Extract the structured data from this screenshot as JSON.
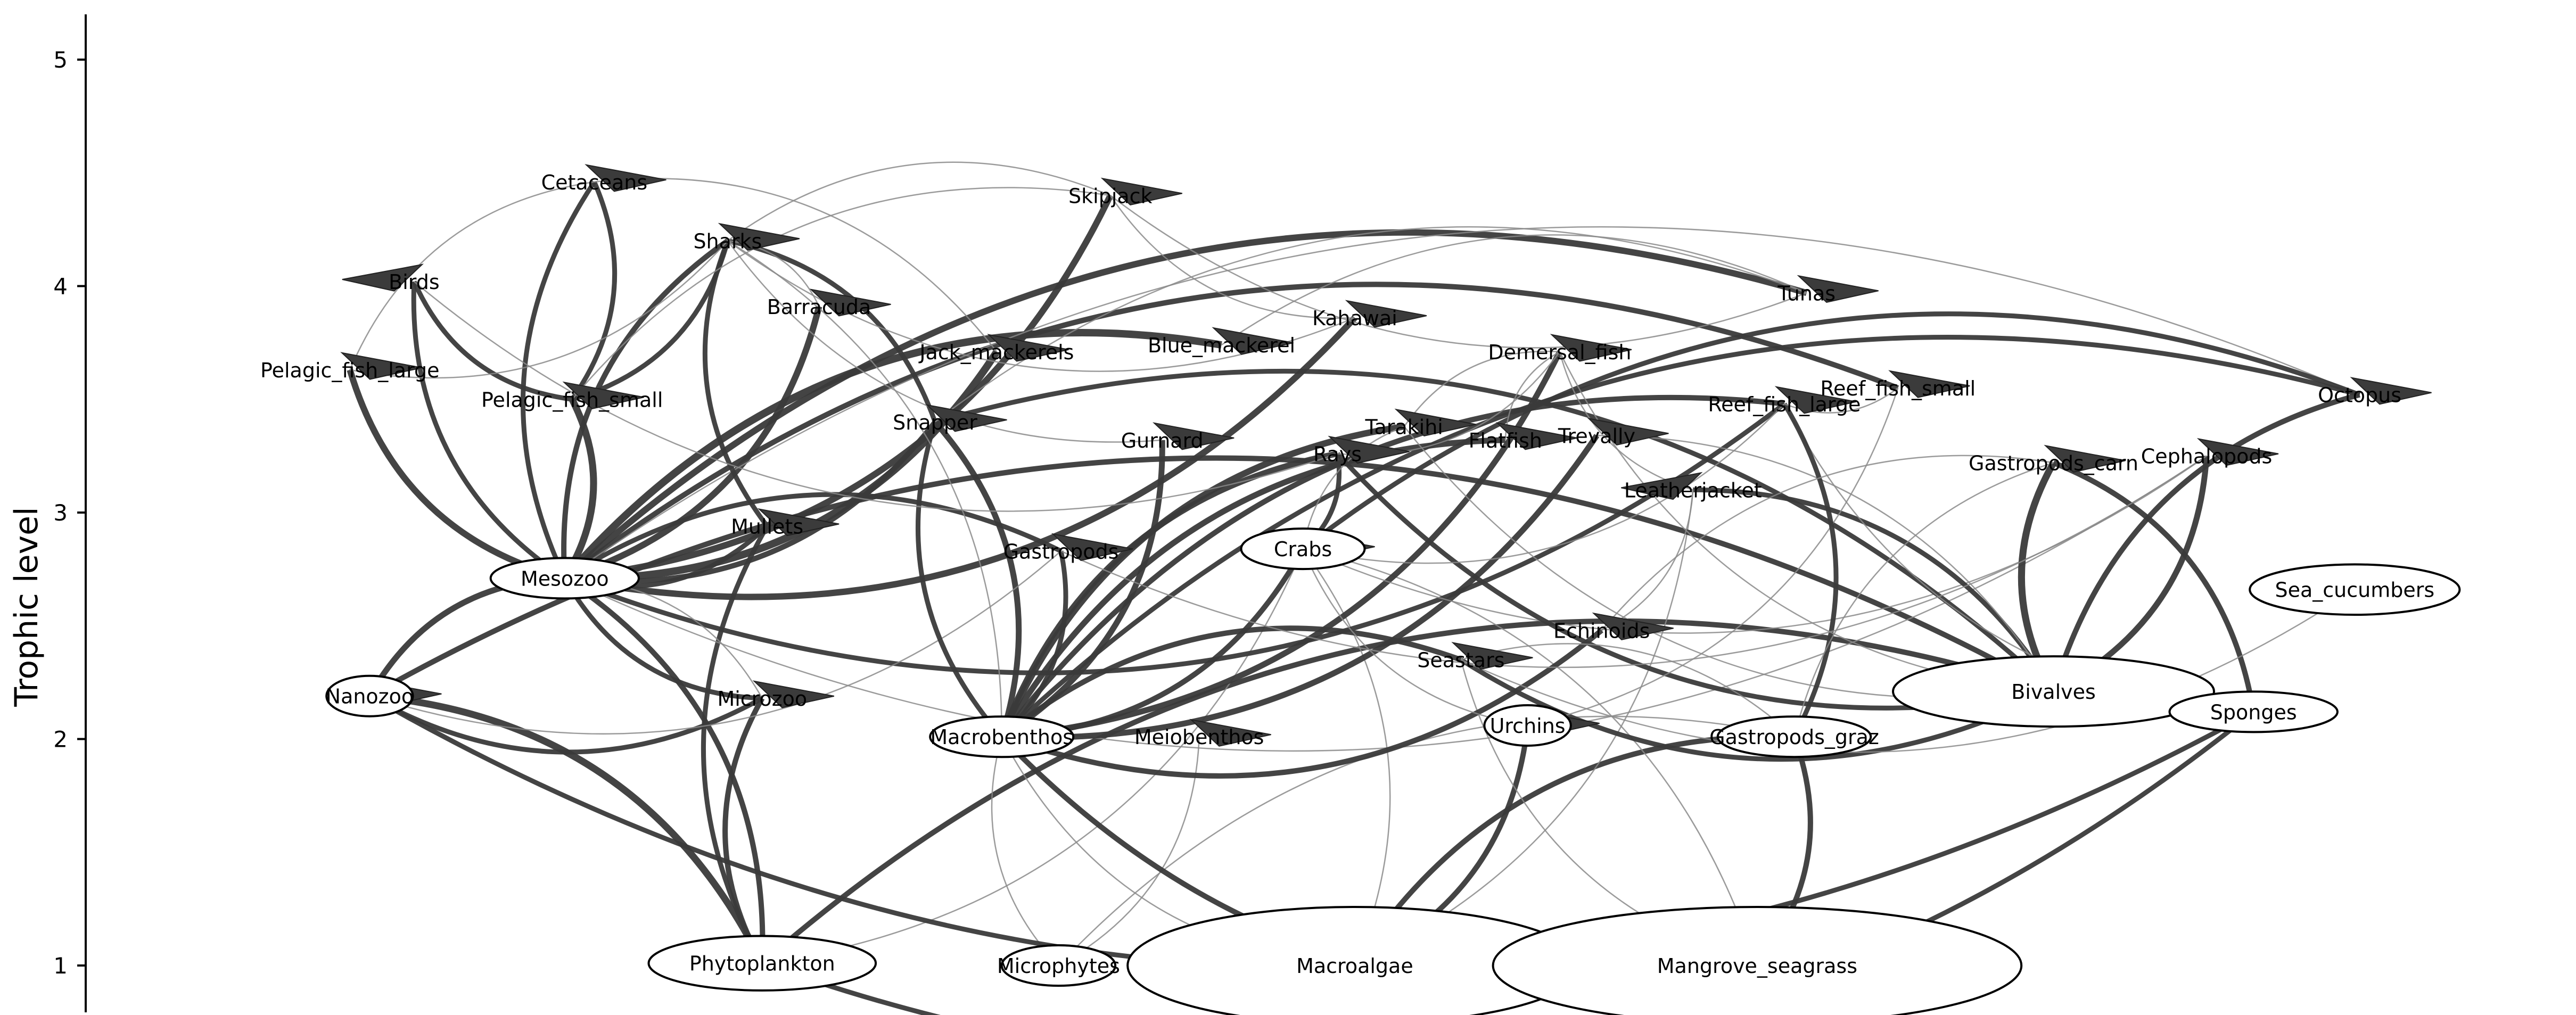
{
  "chart_data": {
    "type": "network",
    "ylabel": "Trophic level",
    "y_ticks": [
      "1",
      "2",
      "3",
      "4",
      "5"
    ],
    "ylim": [
      0.8,
      5.2
    ],
    "nodes": [
      {
        "id": "Cetaceans",
        "label": "Cetaceans",
        "tl": 4.46,
        "x": 0.206,
        "size": 0,
        "arrow": "right"
      },
      {
        "id": "Skipjack",
        "label": "Skipjack",
        "tl": 4.4,
        "x": 0.415,
        "size": 0,
        "arrow": "right"
      },
      {
        "id": "Sharks",
        "label": "Sharks",
        "tl": 4.2,
        "x": 0.26,
        "size": 0,
        "arrow": "right"
      },
      {
        "id": "Birds",
        "label": "Birds",
        "tl": 4.02,
        "x": 0.133,
        "size": 0,
        "arrow": "left"
      },
      {
        "id": "Barracuda",
        "label": "Barracuda",
        "tl": 3.91,
        "x": 0.297,
        "size": 0,
        "arrow": "right"
      },
      {
        "id": "Tunas",
        "label": "Tunas",
        "tl": 3.97,
        "x": 0.697,
        "size": 0,
        "arrow": "right"
      },
      {
        "id": "Kahawai",
        "label": "Kahawai",
        "tl": 3.86,
        "x": 0.514,
        "size": 0,
        "arrow": "right"
      },
      {
        "id": "Bluemackerel",
        "label": "Blue_mackerel",
        "tl": 3.74,
        "x": 0.46,
        "size": 0,
        "arrow": "right"
      },
      {
        "id": "Jackmackerels",
        "label": "Jack_mackerels",
        "tl": 3.71,
        "x": 0.369,
        "size": 0,
        "arrow": "right"
      },
      {
        "id": "Demersalfish",
        "label": "Demersal_fish",
        "tl": 3.71,
        "x": 0.597,
        "size": 0,
        "arrow": "right"
      },
      {
        "id": "PelagicLarge",
        "label": "Pelagic_fish_large",
        "tl": 3.63,
        "x": 0.107,
        "size": 0,
        "arrow": "right"
      },
      {
        "id": "Reeffishsmall",
        "label": "Reef_fish_small",
        "tl": 3.55,
        "x": 0.734,
        "size": 0,
        "arrow": "right"
      },
      {
        "id": "Octopus",
        "label": "Octopus",
        "tl": 3.52,
        "x": 0.921,
        "size": 0,
        "arrow": "right"
      },
      {
        "id": "PelagicSmall",
        "label": "Pelagic_fish_small",
        "tl": 3.5,
        "x": 0.197,
        "size": 0,
        "arrow": "right"
      },
      {
        "id": "Reeffishlarge",
        "label": "Reef_fish_large",
        "tl": 3.48,
        "x": 0.688,
        "size": 0,
        "arrow": "right"
      },
      {
        "id": "Snapper",
        "label": "Snapper",
        "tl": 3.4,
        "x": 0.344,
        "size": 0,
        "arrow": "right"
      },
      {
        "id": "Tarakihi",
        "label": "Tarakihi",
        "tl": 3.38,
        "x": 0.534,
        "size": 0,
        "arrow": "right"
      },
      {
        "id": "Gurnard",
        "label": "Gurnard",
        "tl": 3.32,
        "x": 0.436,
        "size": 0,
        "arrow": "right"
      },
      {
        "id": "Flatfish",
        "label": "Flatfish",
        "tl": 3.32,
        "x": 0.575,
        "size": 0,
        "arrow": "right"
      },
      {
        "id": "Trevally",
        "label": "Trevally",
        "tl": 3.34,
        "x": 0.612,
        "size": 0,
        "arrow": "right"
      },
      {
        "id": "Rays",
        "label": "Rays",
        "tl": 3.26,
        "x": 0.507,
        "size": 0,
        "arrow": "right"
      },
      {
        "id": "Gastropodscarn",
        "label": "Gastropods_carn",
        "tl": 3.22,
        "x": 0.797,
        "size": 0,
        "arrow": "right"
      },
      {
        "id": "Cephalopods",
        "label": "Cephalopods",
        "tl": 3.25,
        "x": 0.859,
        "size": 0,
        "arrow": "right"
      },
      {
        "id": "Leatherjacket",
        "label": "Leatherjacket",
        "tl": 3.1,
        "x": 0.651,
        "size": 0,
        "arrow": "left"
      },
      {
        "id": "Mullets",
        "label": "Mullets",
        "tl": 2.94,
        "x": 0.276,
        "size": 0,
        "arrow": "right"
      },
      {
        "id": "Crabs",
        "label": "Crabs",
        "tl": 2.84,
        "x": 0.493,
        "size": 0.05,
        "arrow": "right"
      },
      {
        "id": "Gastropods",
        "label": "Gastropods",
        "tl": 2.83,
        "x": 0.395,
        "size": 0,
        "arrow": "right"
      },
      {
        "id": "Mesozoo",
        "label": "Mesozoo",
        "tl": 2.71,
        "x": 0.194,
        "size": 0.06,
        "arrow": "left"
      },
      {
        "id": "Seacucumbers",
        "label": "Sea_cucumbers",
        "tl": 2.66,
        "x": 0.919,
        "size": 0.085,
        "arrow": "left"
      },
      {
        "id": "Echinoids",
        "label": "Echinoids",
        "tl": 2.48,
        "x": 0.614,
        "size": 0,
        "arrow": "right"
      },
      {
        "id": "Seastars",
        "label": "Seastars",
        "tl": 2.35,
        "x": 0.557,
        "size": 0,
        "arrow": "right"
      },
      {
        "id": "Bivalves",
        "label": "Bivalves",
        "tl": 2.21,
        "x": 0.797,
        "size": 0.13,
        "arrow": "left"
      },
      {
        "id": "Nanozoo",
        "label": "Nanozoo",
        "tl": 2.19,
        "x": 0.115,
        "size": 0.035,
        "arrow": "right"
      },
      {
        "id": "Microzoo",
        "label": "Microzoo",
        "tl": 2.18,
        "x": 0.274,
        "size": 0,
        "arrow": "right"
      },
      {
        "id": "Sponges",
        "label": "Sponges",
        "tl": 2.12,
        "x": 0.878,
        "size": 0.068,
        "arrow": "left"
      },
      {
        "id": "Urchins",
        "label": "Urchins",
        "tl": 2.06,
        "x": 0.584,
        "size": 0.035,
        "arrow": "right"
      },
      {
        "id": "Macrobenthos",
        "label": "Macrobenthos",
        "tl": 2.01,
        "x": 0.371,
        "size": 0.058,
        "arrow": "right"
      },
      {
        "id": "Meiobenthos",
        "label": "Meiobenthos",
        "tl": 2.01,
        "x": 0.451,
        "size": 0,
        "arrow": "right"
      },
      {
        "id": "Gastropodsgraz",
        "label": "Gastropods_graz",
        "tl": 2.01,
        "x": 0.692,
        "size": 0.062,
        "arrow": "right"
      },
      {
        "id": "Phytoplankton",
        "label": "Phytoplankton",
        "tl": 1.01,
        "x": 0.274,
        "size": 0.092,
        "arrow": "none"
      },
      {
        "id": "Microphytes",
        "label": "Microphytes",
        "tl": 1.0,
        "x": 0.394,
        "size": 0.046,
        "arrow": "none"
      },
      {
        "id": "Macroalgae",
        "label": "Macroalgae",
        "tl": 1.0,
        "x": 0.514,
        "size": 0.184,
        "arrow": "none"
      },
      {
        "id": "Mangroveseagrass",
        "label": "Mangrove_seagrass",
        "tl": 1.0,
        "x": 0.677,
        "size": 0.214,
        "arrow": "none"
      }
    ],
    "links": [
      {
        "s": "Phytoplankton",
        "t": "Nanozoo",
        "w": 0.9
      },
      {
        "s": "Phytoplankton",
        "t": "Microzoo",
        "w": 0.6
      },
      {
        "s": "Phytoplankton",
        "t": "Mesozoo",
        "w": 0.6
      },
      {
        "s": "Phytoplankton",
        "t": "Bivalves",
        "w": 0.6
      },
      {
        "s": "Phytoplankton",
        "t": "Sponges",
        "w": 0.5
      },
      {
        "s": "Phytoplankton",
        "t": "Mullets",
        "w": 0.5
      },
      {
        "s": "Phytoplankton",
        "t": "Crabs",
        "w": 0.3
      },
      {
        "s": "Microphytes",
        "t": "Gastropodsgraz",
        "w": 0.3
      },
      {
        "s": "Microphytes",
        "t": "Meiobenthos",
        "w": 0.2
      },
      {
        "s": "Microphytes",
        "t": "Macrobenthos",
        "w": 0.2
      },
      {
        "s": "Macroalgae",
        "t": "Urchins",
        "w": 0.6
      },
      {
        "s": "Macroalgae",
        "t": "Gastropodsgraz",
        "w": 0.6
      },
      {
        "s": "Macroalgae",
        "t": "Crabs",
        "w": 0.3
      },
      {
        "s": "Macroalgae",
        "t": "Macrobenthos",
        "w": 0.2
      },
      {
        "s": "Macroalgae",
        "t": "Leatherjacket",
        "w": 0.2
      },
      {
        "s": "Mangroveseagrass",
        "t": "Macrobenthos",
        "w": 0.6
      },
      {
        "s": "Mangroveseagrass",
        "t": "Gastropodsgraz",
        "w": 0.6
      },
      {
        "s": "Mangroveseagrass",
        "t": "Seastars",
        "w": 0.2
      },
      {
        "s": "Mangroveseagrass",
        "t": "Crabs",
        "w": 0.2
      },
      {
        "s": "Nanozoo",
        "t": "Mesozoo",
        "w": 0.7
      },
      {
        "s": "Nanozoo",
        "t": "Microzoo",
        "w": 0.5
      },
      {
        "s": "Nanozoo",
        "t": "Bivalves",
        "w": 0.6
      },
      {
        "s": "Nanozoo",
        "t": "Sponges",
        "w": 0.5
      },
      {
        "s": "Microzoo",
        "t": "Mesozoo",
        "w": 0.5
      },
      {
        "s": "Mesozoo",
        "t": "Skipjack",
        "w": 0.8
      },
      {
        "s": "Mesozoo",
        "t": "Sharks",
        "w": 0.6
      },
      {
        "s": "Mesozoo",
        "t": "Barracuda",
        "w": 0.8
      },
      {
        "s": "Mesozoo",
        "t": "Tunas",
        "w": 0.8
      },
      {
        "s": "Mesozoo",
        "t": "Kahawai",
        "w": 0.8
      },
      {
        "s": "Mesozoo",
        "t": "Bluemackerel",
        "w": 1.0
      },
      {
        "s": "Mesozoo",
        "t": "Jackmackerels",
        "w": 1.0
      },
      {
        "s": "Mesozoo",
        "t": "PelagicLarge",
        "w": 0.8
      },
      {
        "s": "Mesozoo",
        "t": "PelagicSmall",
        "w": 0.9
      },
      {
        "s": "Mesozoo",
        "t": "Birds",
        "w": 0.5
      },
      {
        "s": "Mesozoo",
        "t": "Snapper",
        "w": 0.6
      },
      {
        "s": "Mesozoo",
        "t": "Reeffishsmall",
        "w": 0.6
      },
      {
        "s": "Mesozoo",
        "t": "Reeffishlarge",
        "w": 0.5
      },
      {
        "s": "Mesozoo",
        "t": "Cetaceans",
        "w": 0.5
      },
      {
        "s": "Mesozoo",
        "t": "Mullets",
        "w": 0.5
      },
      {
        "s": "Mesozoo",
        "t": "Gastropods",
        "w": 0.5
      },
      {
        "s": "Mesozoo",
        "t": "Cephalopods",
        "w": 0.4
      },
      {
        "s": "Mesozoo",
        "t": "Octopus",
        "w": 0.4
      },
      {
        "s": "Macrobenthos",
        "t": "Snapper",
        "w": 0.7
      },
      {
        "s": "Macrobenthos",
        "t": "Tarakihi",
        "w": 0.8
      },
      {
        "s": "Macrobenthos",
        "t": "Gurnard",
        "w": 0.7
      },
      {
        "s": "Macrobenthos",
        "t": "Flatfish",
        "w": 0.7
      },
      {
        "s": "Macrobenthos",
        "t": "Trevally",
        "w": 0.7
      },
      {
        "s": "Macrobenthos",
        "t": "Rays",
        "w": 0.7
      },
      {
        "s": "Macrobenthos",
        "t": "Demersalfish",
        "w": 0.7
      },
      {
        "s": "Macrobenthos",
        "t": "Reeffishlarge",
        "w": 0.6
      },
      {
        "s": "Macrobenthos",
        "t": "Crabs",
        "w": 0.6
      },
      {
        "s": "Macrobenthos",
        "t": "Seastars",
        "w": 0.6
      },
      {
        "s": "Macrobenthos",
        "t": "Echinoids",
        "w": 0.6
      },
      {
        "s": "Macrobenthos",
        "t": "Octopus",
        "w": 0.5
      },
      {
        "s": "Macrobenthos",
        "t": "Gastropods",
        "w": 0.5
      },
      {
        "s": "Crabs",
        "t": "Octopus",
        "w": 0.5
      },
      {
        "s": "Crabs",
        "t": "Rays",
        "w": 0.5
      },
      {
        "s": "Crabs",
        "t": "Tarakihi",
        "w": 0.4
      },
      {
        "s": "Crabs",
        "t": "Cephalopods",
        "w": 0.4
      },
      {
        "s": "Bivalves",
        "t": "Gastropodscarn",
        "w": 0.9
      },
      {
        "s": "Bivalves",
        "t": "Cephalopods",
        "w": 0.7
      },
      {
        "s": "Bivalves",
        "t": "Octopus",
        "w": 0.6
      },
      {
        "s": "Bivalves",
        "t": "Leatherjacket",
        "w": 0.5
      },
      {
        "s": "Bivalves",
        "t": "Rays",
        "w": 0.5
      },
      {
        "s": "Bivalves",
        "t": "Snapper",
        "w": 0.5
      },
      {
        "s": "Bivalves",
        "t": "Seastars",
        "w": 0.5
      },
      {
        "s": "Bivalves",
        "t": "Trevally",
        "w": 0.4
      },
      {
        "s": "Bivalves",
        "t": "Tarakihi",
        "w": 0.4
      },
      {
        "s": "Sponges",
        "t": "Gastropodscarn",
        "w": 0.6
      },
      {
        "s": "Sponges",
        "t": "Reeffishlarge",
        "w": 0.4
      },
      {
        "s": "Urchins",
        "t": "Reeffishsmall",
        "w": 0.4
      },
      {
        "s": "Urchins",
        "t": "Crabs",
        "w": 0.3
      },
      {
        "s": "Gastropodsgraz",
        "t": "Reeffishlarge",
        "w": 0.5
      },
      {
        "s": "Gastropodsgraz",
        "t": "Gastropodscarn",
        "w": 0.4
      },
      {
        "s": "Gastropodsgraz",
        "t": "Seastars",
        "w": 0.4
      },
      {
        "s": "Seacucumbers",
        "t": "Seastars",
        "w": 0.4
      },
      {
        "s": "Echinoids",
        "t": "Leatherjacket",
        "w": 0.4
      },
      {
        "s": "Leatherjacket",
        "t": "Demersalfish",
        "w": 0.4
      },
      {
        "s": "Nanozoo",
        "t": "Gastropods",
        "w": 0.4
      },
      {
        "s": "Mullets",
        "t": "Sharks",
        "w": 0.5
      },
      {
        "s": "Snapper",
        "t": "Sharks",
        "w": 0.5
      },
      {
        "s": "Snapper",
        "t": "Tunas",
        "w": 0.4
      },
      {
        "s": "Snapper",
        "t": "Macrobenthos",
        "w": 0.5
      },
      {
        "s": "Gurnard",
        "t": "Sharks",
        "w": 0.4
      },
      {
        "s": "PelagicSmall",
        "t": "Sharks",
        "w": 0.5
      },
      {
        "s": "PelagicSmall",
        "t": "Birds",
        "w": 0.5
      },
      {
        "s": "PelagicSmall",
        "t": "Cetaceans",
        "w": 0.5
      },
      {
        "s": "PelagicSmall",
        "t": "Skipjack",
        "w": 0.4
      },
      {
        "s": "PelagicLarge",
        "t": "Sharks",
        "w": 0.4
      },
      {
        "s": "PelagicLarge",
        "t": "Cetaceans",
        "w": 0.4
      },
      {
        "s": "Birds",
        "t": "Rays",
        "w": 0.4
      },
      {
        "s": "Sharks",
        "t": "Macrobenthos",
        "w": 0.4
      },
      {
        "s": "Sharks",
        "t": "Kahawai",
        "w": 0.4
      },
      {
        "s": "Sharks",
        "t": "Skipjack",
        "w": 0.3
      },
      {
        "s": "Barracuda",
        "t": "Sharks",
        "w": 0.3
      },
      {
        "s": "Kahawai",
        "t": "Skipjack",
        "w": 0.3
      },
      {
        "s": "Jackmackerels",
        "t": "Cetaceans",
        "w": 0.2
      },
      {
        "s": "Bluemackerel",
        "t": "Tunas",
        "w": 0.3
      },
      {
        "s": "Skipjack",
        "t": "Tunas",
        "w": 0.4
      },
      {
        "s": "Tarakihi",
        "t": "Demersalfish",
        "w": 0.3
      },
      {
        "s": "Rays",
        "t": "Demersalfish",
        "w": 0.3
      },
      {
        "s": "Flatfish",
        "t": "Demersalfish",
        "w": 0.3
      },
      {
        "s": "Demersalfish",
        "t": "Bivalves",
        "w": 0.4
      },
      {
        "s": "Reeffishsmall",
        "t": "Reeffishlarge",
        "w": 0.3
      },
      {
        "s": "Gastropods",
        "t": "Cephalopods",
        "w": 0.4
      },
      {
        "s": "Mesozoo",
        "t": "Microzoo",
        "w": 0.3
      },
      {
        "s": "Crabs",
        "t": "Reeffishlarge",
        "w": 0.3
      },
      {
        "s": "Echinoids",
        "t": "Gastropodscarn",
        "w": 0.3
      }
    ]
  }
}
